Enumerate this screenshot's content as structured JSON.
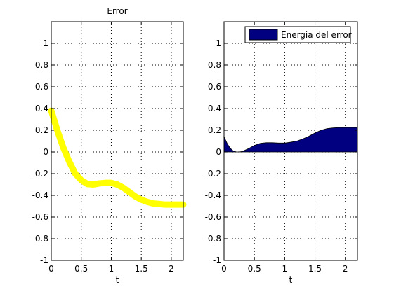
{
  "chart_data": [
    {
      "type": "line",
      "title": "Error",
      "xlabel": "t",
      "ylabel": "",
      "xlim": [
        0,
        2.2
      ],
      "ylim": [
        -1,
        1.2
      ],
      "grid": true,
      "x_ticks": [
        0,
        0.5,
        1,
        1.5,
        2
      ],
      "x_tick_labels": [
        "0",
        "0.5",
        "1",
        "1.5",
        "2"
      ],
      "y_ticks": [
        -1,
        -0.8,
        -0.6,
        -0.4,
        -0.2,
        0,
        0.2,
        0.4,
        0.6,
        0.8,
        1
      ],
      "y_tick_labels": [
        "-1",
        "-0.8",
        "-0.6",
        "-0.4",
        "-0.2",
        "0",
        "0.2",
        "0.4",
        "0.6",
        "0.8",
        "1"
      ],
      "color": "#ffff00",
      "series": [
        {
          "x": [
            0,
            0.1,
            0.2,
            0.3,
            0.4,
            0.5,
            0.6,
            0.7,
            0.8,
            0.9,
            1.0,
            1.1,
            1.2,
            1.3,
            1.4,
            1.5,
            1.6,
            1.7,
            1.8,
            1.9,
            2.0,
            2.1,
            2.2
          ],
          "values": [
            0.38,
            0.2,
            0.04,
            -0.09,
            -0.2,
            -0.26,
            -0.295,
            -0.3,
            -0.29,
            -0.285,
            -0.285,
            -0.3,
            -0.33,
            -0.37,
            -0.41,
            -0.44,
            -0.46,
            -0.475,
            -0.48,
            -0.485,
            -0.485,
            -0.485,
            -0.485
          ]
        }
      ]
    },
    {
      "type": "area",
      "title": "",
      "xlabel": "t",
      "ylabel": "",
      "xlim": [
        0,
        2.2
      ],
      "ylim": [
        -1,
        1.2
      ],
      "grid": true,
      "legend_position": "top-right",
      "x_ticks": [
        0,
        0.5,
        1,
        1.5,
        2
      ],
      "x_tick_labels": [
        "0",
        "0.5",
        "1",
        "1.5",
        "2"
      ],
      "y_ticks": [
        -1,
        -0.8,
        -0.6,
        -0.4,
        -0.2,
        0,
        0.2,
        0.4,
        0.6,
        0.8,
        1
      ],
      "y_tick_labels": [
        "-1",
        "-0.8",
        "-0.6",
        "-0.4",
        "-0.2",
        "0",
        "0.2",
        "0.4",
        "0.6",
        "0.8",
        "1"
      ],
      "color": "#000080",
      "series": [
        {
          "name": "Energia del error",
          "x": [
            0,
            0.05,
            0.1,
            0.15,
            0.2,
            0.25,
            0.3,
            0.4,
            0.5,
            0.6,
            0.7,
            0.8,
            0.9,
            1.0,
            1.1,
            1.2,
            1.3,
            1.4,
            1.5,
            1.6,
            1.7,
            1.8,
            1.9,
            2.0,
            2.1,
            2.2
          ],
          "values": [
            0.14,
            0.08,
            0.035,
            0.01,
            0.001,
            0.0,
            0.005,
            0.03,
            0.06,
            0.08,
            0.085,
            0.085,
            0.082,
            0.082,
            0.09,
            0.1,
            0.12,
            0.145,
            0.175,
            0.2,
            0.215,
            0.222,
            0.225,
            0.225,
            0.225,
            0.225
          ]
        }
      ]
    }
  ]
}
